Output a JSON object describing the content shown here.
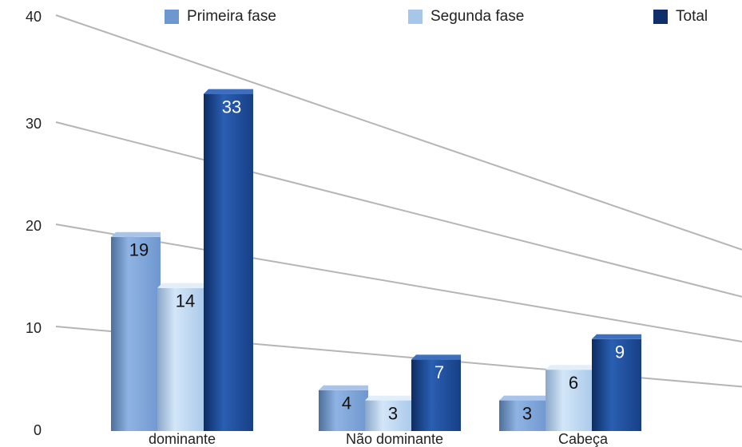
{
  "chart_data": {
    "type": "bar",
    "categories": [
      "dominante",
      "Não dominante",
      "Cabeça"
    ],
    "series": [
      {
        "name": "Primeira fase",
        "values": [
          19,
          4,
          3
        ],
        "color": "#7ea4d8"
      },
      {
        "name": "Segunda fase",
        "values": [
          14,
          3,
          6
        ],
        "color": "#b9d4f0"
      },
      {
        "name": "Total",
        "values": [
          33,
          7,
          9
        ],
        "color": "#1f4f9e"
      }
    ],
    "title": "",
    "xlabel": "",
    "ylabel": "",
    "ylim": [
      0,
      40
    ],
    "yticks": [
      "0",
      "10",
      "20",
      "30",
      "40"
    ],
    "grid": true,
    "legend_position": "top",
    "style": "3d-perspective"
  }
}
